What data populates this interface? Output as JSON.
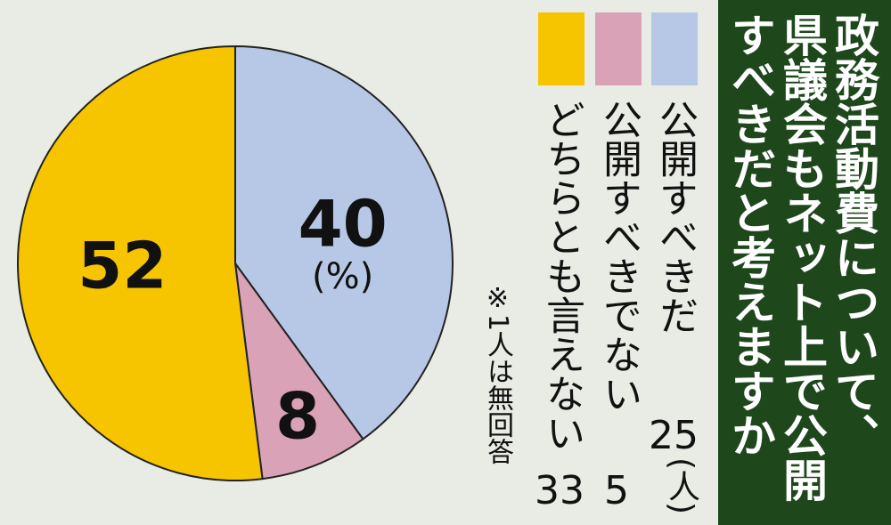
{
  "chart_data": {
    "type": "pie",
    "title": [
      "政務活動費について、",
      "県議会もネット上で公開",
      "すべきだと考えますか"
    ],
    "categories": [
      "公開すべきだ",
      "公開すべきでない",
      "どちらとも言えない"
    ],
    "values": [
      40,
      8,
      52
    ],
    "unit_label": "(%)",
    "colors": [
      "#b7c8e6",
      "#d9a2b6",
      "#f6c500"
    ],
    "counts": [
      25,
      5,
      33
    ],
    "count_unit": "(人)",
    "note": "※1人は無回答"
  }
}
